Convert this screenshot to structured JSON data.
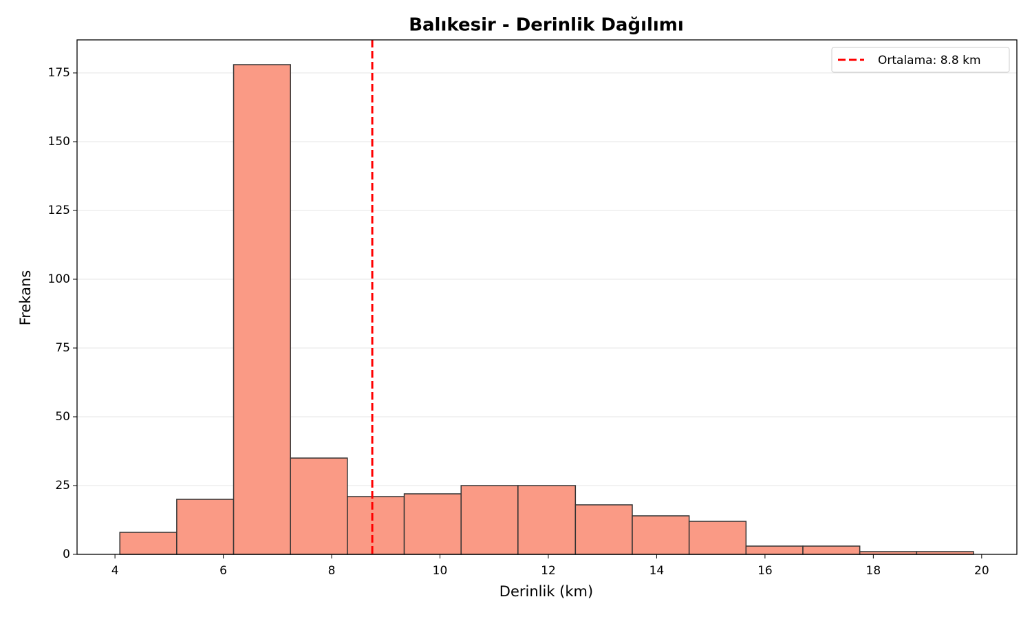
{
  "chart_data": {
    "type": "histogram",
    "title": "Balıkesir - Derinlik Dağılımı",
    "xlabel": "Derinlik (km)",
    "ylabel": "Frekans",
    "bins": [
      4.09,
      5.14,
      6.19,
      7.24,
      8.29,
      9.34,
      10.39,
      11.44,
      12.5,
      13.55,
      14.6,
      15.65,
      16.7,
      17.75,
      18.8,
      19.85
    ],
    "values": [
      8,
      20,
      178,
      35,
      21,
      22,
      25,
      25,
      18,
      14,
      12,
      3,
      3,
      1,
      1
    ],
    "color": "#fa9a85",
    "edgecolor": "#333333",
    "mean_line": {
      "value": 8.75,
      "label": "Ortalama: 8.8 km",
      "color": "#ff0000"
    },
    "xlim": [
      3.3,
      20.65
    ],
    "ylim": [
      0,
      187
    ],
    "xticks": [
      4,
      6,
      8,
      10,
      12,
      14,
      16,
      18,
      20
    ],
    "yticks": [
      0,
      25,
      50,
      75,
      100,
      125,
      150,
      175
    ],
    "grid": "y",
    "legend": "upper right"
  }
}
